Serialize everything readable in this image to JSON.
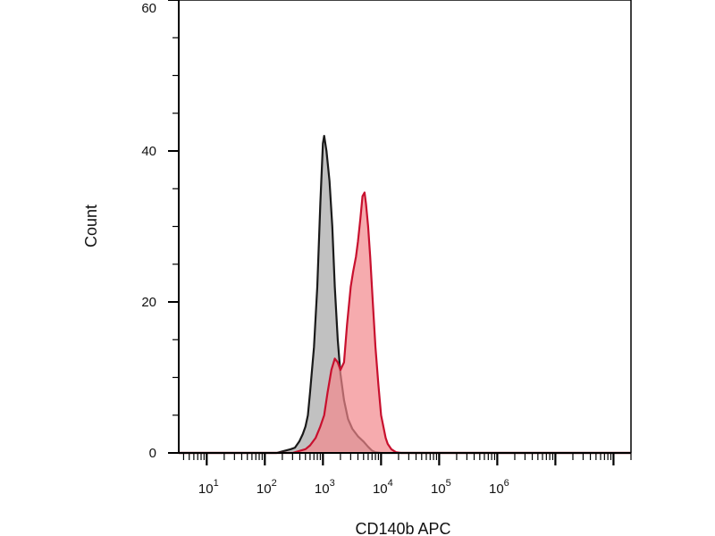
{
  "chart_data": {
    "type": "area",
    "xlabel": "CD140b APC",
    "ylabel": "Count",
    "x_scale": "log",
    "xlim": [
      3.3,
      200000000
    ],
    "ylim": [
      0,
      60
    ],
    "grid": false,
    "x_tick_values": [
      10,
      100,
      1000,
      10000,
      100000,
      1000000
    ],
    "x_tick_labels": [
      {
        "base": "10",
        "exp": "1"
      },
      {
        "base": "10",
        "exp": "2"
      },
      {
        "base": "10",
        "exp": "3"
      },
      {
        "base": "10",
        "exp": "4"
      },
      {
        "base": "10",
        "exp": "5"
      },
      {
        "base": "10",
        "exp": "6"
      }
    ],
    "y_ticks": [
      0,
      20,
      40,
      60
    ],
    "series": [
      {
        "fill": "#a6a6a6",
        "stroke": "#1a1a1a",
        "x": [
          3.3,
          100,
          160,
          200,
          280,
          330,
          390,
          450,
          500,
          550,
          600,
          700,
          800,
          900,
          1000,
          1050,
          1150,
          1300,
          1450,
          1600,
          1800,
          2000,
          2300,
          2700,
          3200,
          4000,
          5000,
          6000,
          7000,
          8000,
          10000,
          14000,
          200000000
        ],
        "y": [
          0,
          0,
          0,
          0.2,
          0.5,
          0.7,
          1.5,
          2.5,
          3.5,
          5.0,
          8.0,
          14.0,
          22.0,
          33.0,
          41.0,
          42.0,
          40.0,
          36.0,
          30.0,
          22.0,
          15.0,
          10.5,
          7.0,
          4.5,
          3.2,
          2.2,
          1.5,
          0.8,
          0.3,
          0.1,
          0,
          0,
          0
        ]
      },
      {
        "fill": "#f2888c",
        "stroke": "#c8102e",
        "x": [
          3.3,
          300,
          500,
          600,
          750,
          900,
          1050,
          1200,
          1400,
          1600,
          1800,
          2000,
          2300,
          2600,
          3000,
          3300,
          3700,
          4000,
          4400,
          4800,
          5200,
          5500,
          6000,
          6500,
          7200,
          8000,
          9000,
          10000,
          12000,
          13000,
          15000,
          18000,
          22000,
          200000000
        ],
        "y": [
          0,
          0,
          0.5,
          1.0,
          2.0,
          3.5,
          5.0,
          8.0,
          11.0,
          12.5,
          12.0,
          11.0,
          12.0,
          17.0,
          22.0,
          24.0,
          26.0,
          28.0,
          31.0,
          34.0,
          34.5,
          33.0,
          30.0,
          26.0,
          20.0,
          14.0,
          9.0,
          5.0,
          2.0,
          1.2,
          0.5,
          0.1,
          0,
          0
        ]
      }
    ]
  }
}
